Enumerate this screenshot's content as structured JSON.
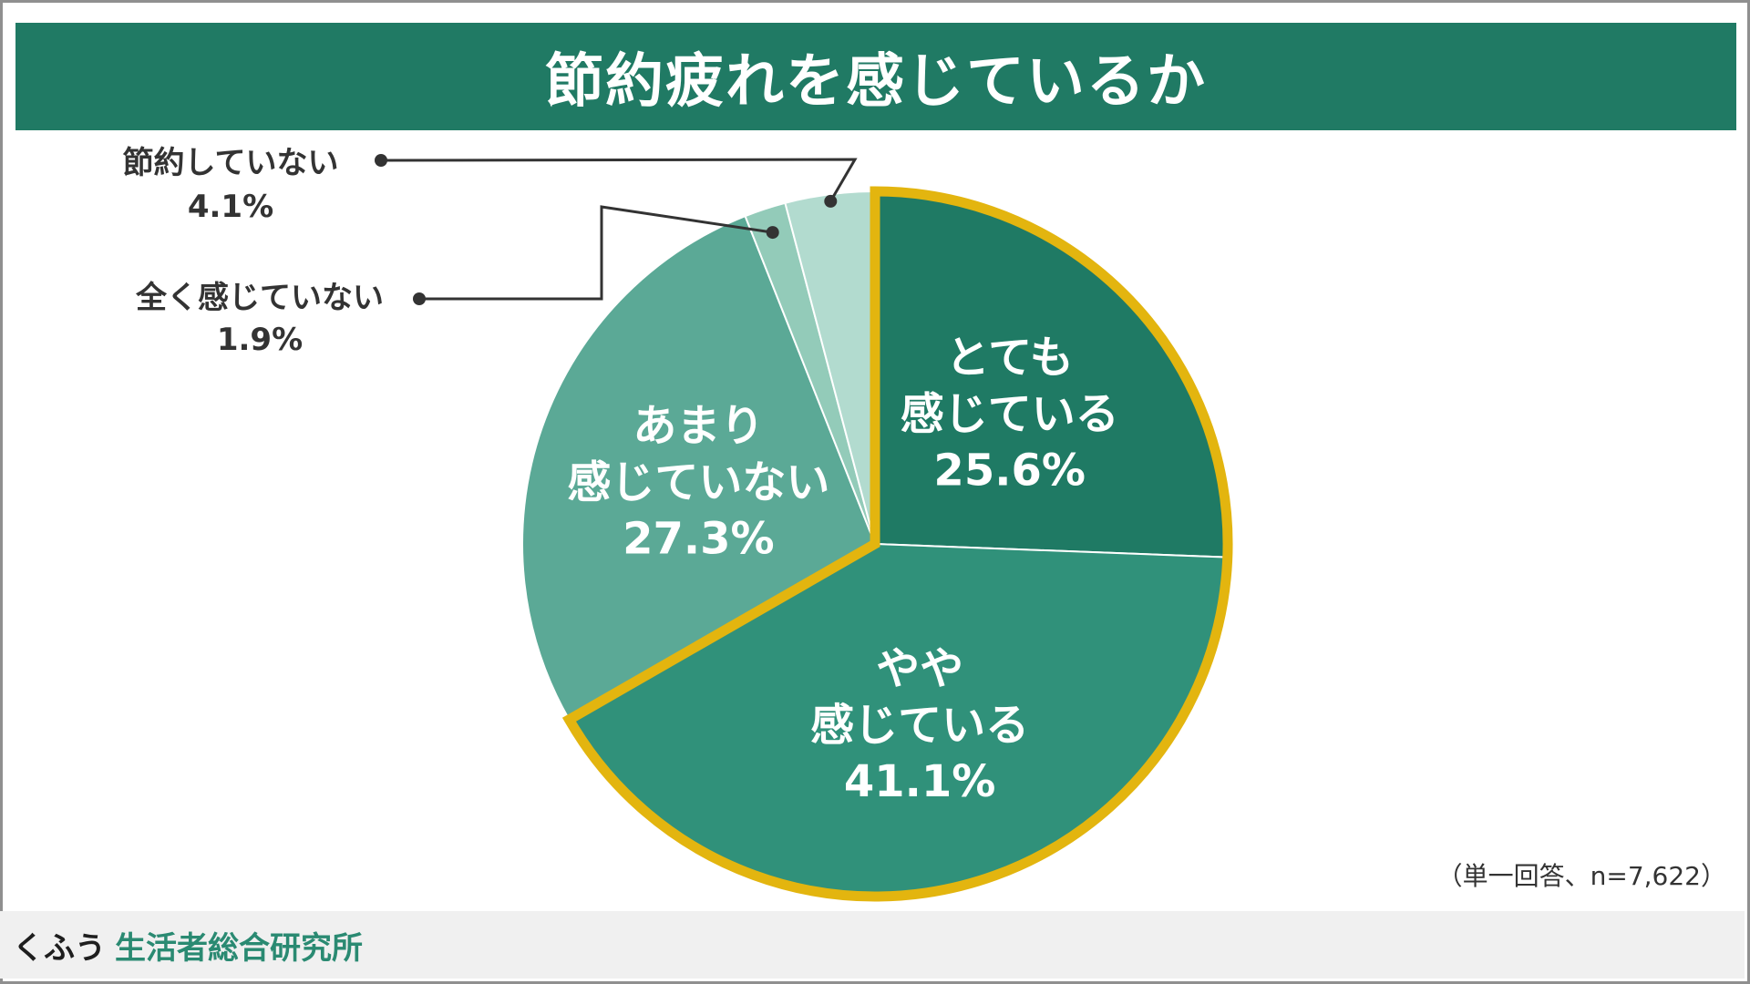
{
  "header": {
    "title": "節約疲れを感じているか"
  },
  "footnote": "（単一回答、n=7,622）",
  "footer": {
    "brand": "くふう",
    "org": "生活者総合研究所"
  },
  "chart_data": {
    "type": "pie",
    "title": "節約疲れを感じているか",
    "start_angle_deg": 0,
    "direction": "clockwise",
    "highlight_group": [
      "とても感じている",
      "やや感じている"
    ],
    "highlight_color": "#e3b50f",
    "slices": [
      {
        "label_lines": [
          "とても",
          "感じている"
        ],
        "label": "とても感じている",
        "value": 25.6,
        "value_label": "25.6%",
        "color": "#1f7a64",
        "label_position": "inside"
      },
      {
        "label_lines": [
          "やや",
          "感じている"
        ],
        "label": "やや感じている",
        "value": 41.1,
        "value_label": "41.1%",
        "color": "#30917a",
        "label_position": "inside"
      },
      {
        "label_lines": [
          "あまり",
          "感じていない"
        ],
        "label": "あまり感じていない",
        "value": 27.3,
        "value_label": "27.3%",
        "color": "#5ba996",
        "label_position": "inside"
      },
      {
        "label_lines": [
          "全く感じていない"
        ],
        "label": "全く感じていない",
        "value": 1.9,
        "value_label": "1.9%",
        "color": "#93cbb9",
        "label_position": "outside-callout"
      },
      {
        "label_lines": [
          "節約していない"
        ],
        "label": "節約していない",
        "value": 4.1,
        "value_label": "4.1%",
        "color": "#b2dbcf",
        "label_position": "outside-callout"
      }
    ]
  }
}
